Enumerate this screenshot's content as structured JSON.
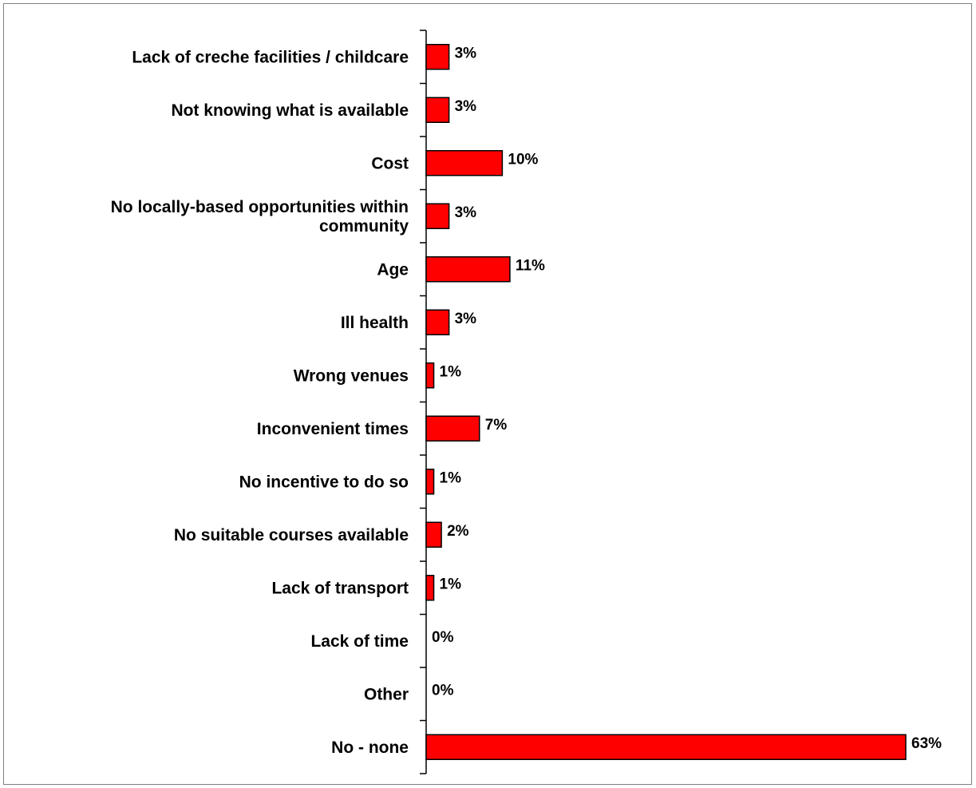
{
  "chart_data": {
    "type": "bar",
    "orientation": "horizontal",
    "categories": [
      [
        "Lack of creche facilities / childcare"
      ],
      [
        "Not knowing what is available"
      ],
      [
        "Cost"
      ],
      [
        "No locally-based opportunities within",
        "community"
      ],
      [
        "Age"
      ],
      [
        "Ill health"
      ],
      [
        "Wrong venues"
      ],
      [
        "Inconvenient times"
      ],
      [
        "No incentive to do so"
      ],
      [
        "No suitable courses available"
      ],
      [
        "Lack of transport"
      ],
      [
        "Lack of time"
      ],
      [
        "Other"
      ],
      [
        "No - none"
      ]
    ],
    "values": [
      3,
      3,
      10,
      3,
      11,
      3,
      1,
      7,
      1,
      2,
      1,
      0,
      0,
      63
    ],
    "value_labels": [
      "3%",
      "3%",
      "10%",
      "3%",
      "11%",
      "3%",
      "1%",
      "7%",
      "1%",
      "2%",
      "1%",
      "0%",
      "0%",
      "63%"
    ],
    "xlim": [
      0,
      63
    ],
    "bar_color": "#ff0000",
    "bar_edge_color": "#000000",
    "grid": false,
    "title": "",
    "xlabel": "",
    "ylabel": ""
  }
}
